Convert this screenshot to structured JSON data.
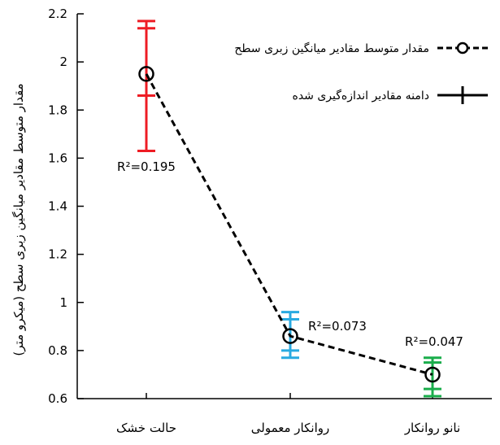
{
  "chart_data": {
    "type": "line",
    "categories": [
      "حالت خشک",
      "روانکار معمولی",
      "نانو روانکار"
    ],
    "ylabel": "مقدار متوسط مقادیر میانگین زبری سطح (میکرو متر)",
    "ylim": [
      0.6,
      2.2
    ],
    "yticks": [
      "0.6",
      "0.8",
      "1",
      "1.2",
      "1.4",
      "1.6",
      "1.8",
      "2",
      "2.2"
    ],
    "grid": false,
    "legend_position": "top-right",
    "series": [
      {
        "name": "مقدار متوسط مقادیر میانگین زبری سطح",
        "values": [
          1.95,
          0.86,
          0.7
        ],
        "style": "dashed",
        "color": "#000000",
        "marker": "circle"
      }
    ],
    "error_ranges": {
      "name": "دامنه مقادیر اندازه‌گیری شده",
      "colors": [
        "#ee1c24",
        "#29aae1",
        "#1aad4b"
      ],
      "min": [
        1.63,
        0.77,
        0.61
      ],
      "max": [
        2.17,
        0.96,
        0.77
      ],
      "inner_low": [
        1.86,
        0.8,
        0.64
      ],
      "inner_high": [
        2.14,
        0.93,
        0.75
      ]
    },
    "annotations": [
      "R²=0.195",
      "R²=0.073",
      "R²=0.047"
    ]
  }
}
